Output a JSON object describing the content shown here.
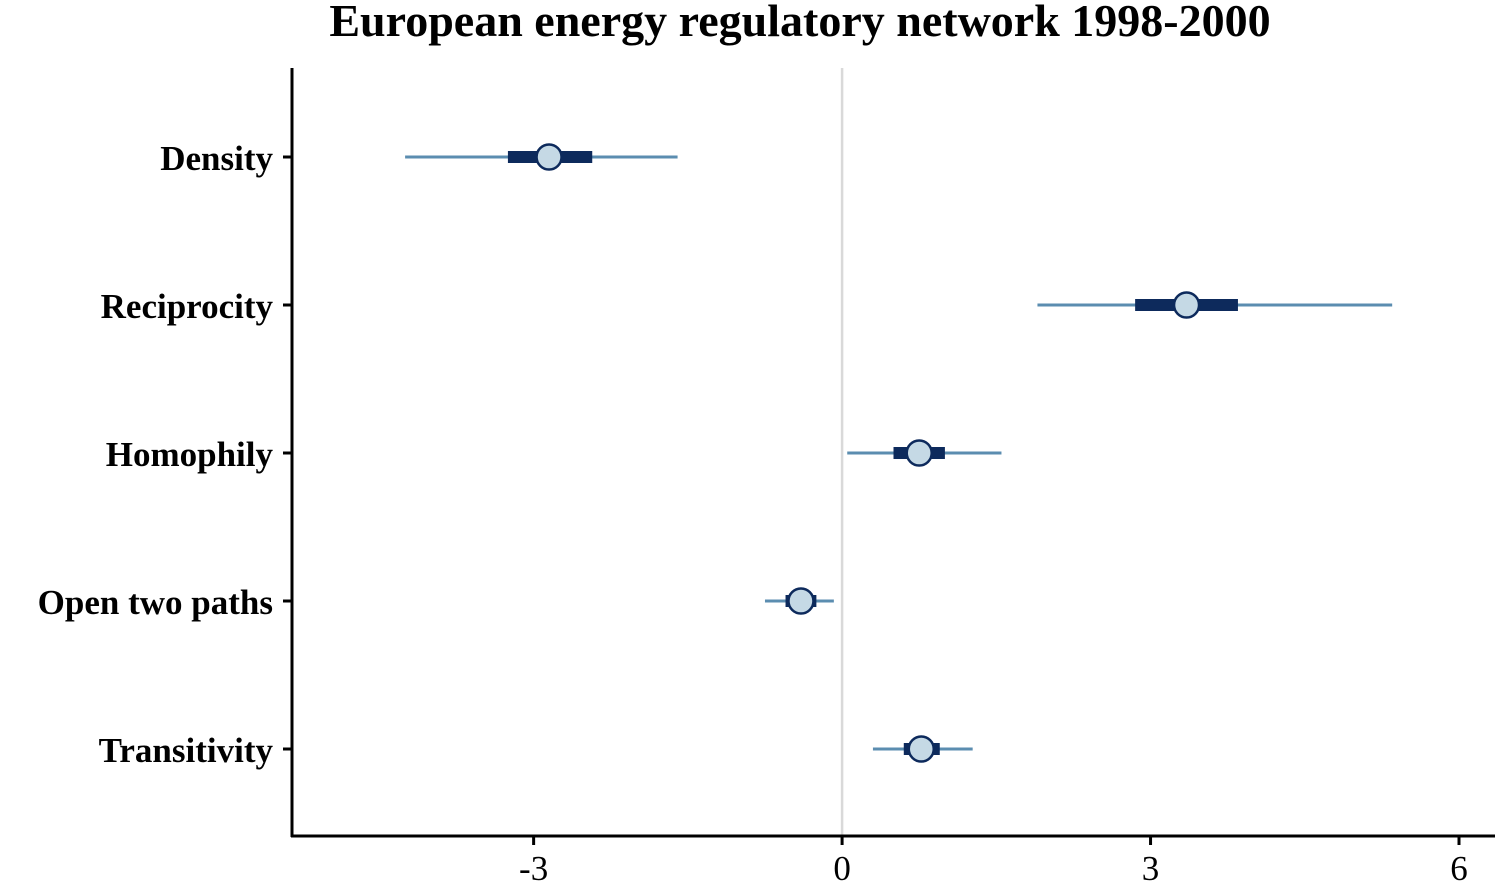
{
  "chart_data": {
    "type": "coefficient-plot",
    "title": "European energy regulatory network 1998-2000",
    "xlabel": "",
    "ylabel": "",
    "xlim": [
      -5.35,
      6.35
    ],
    "x_ticks": [
      {
        "value": -3,
        "label": "-3"
      },
      {
        "value": 0,
        "label": "0"
      },
      {
        "value": 3,
        "label": "3"
      },
      {
        "value": 6,
        "label": "6"
      }
    ],
    "reference_line": 0,
    "grid": false,
    "legend": "none",
    "categories": [
      "Density",
      "Reciprocity",
      "Homophily",
      "Open two paths",
      "Transitivity"
    ],
    "points": [
      {
        "label": "Density",
        "estimate": -2.85,
        "inner": [
          -3.25,
          -2.43
        ],
        "outer": [
          -4.25,
          -1.6
        ]
      },
      {
        "label": "Reciprocity",
        "estimate": 3.35,
        "inner": [
          2.85,
          3.85
        ],
        "outer": [
          1.9,
          5.35
        ]
      },
      {
        "label": "Homophily",
        "estimate": 0.75,
        "inner": [
          0.5,
          1.0
        ],
        "outer": [
          0.05,
          1.55
        ]
      },
      {
        "label": "Open two paths",
        "estimate": -0.4,
        "inner": [
          -0.55,
          -0.25
        ],
        "outer": [
          -0.75,
          -0.08
        ]
      },
      {
        "label": "Transitivity",
        "estimate": 0.77,
        "inner": [
          0.6,
          0.95
        ],
        "outer": [
          0.3,
          1.27
        ]
      }
    ],
    "colors": {
      "outer_line": "#5b8db0",
      "inner_line": "#0d2a5c",
      "point_fill": "#c5d9e5",
      "point_stroke": "#0d2a5c",
      "reference_line": "#d9d9d9",
      "axis": "#000000"
    }
  }
}
